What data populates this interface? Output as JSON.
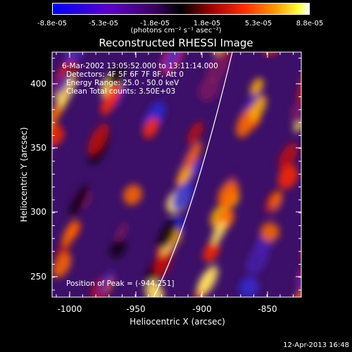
{
  "colorbar": {
    "ticks": [
      "-8.8e-05",
      "-5.3e-05",
      "-1.8e-05",
      "1.8e-05",
      "5.3e-05",
      "8.8e-05"
    ],
    "units": "(photons cm⁻² s⁻¹ asec⁻²)"
  },
  "title": "Reconstructed RHESSI Image",
  "info": {
    "time_range": "6-Mar-2002 13:05:52.000 to 13:11:14.000",
    "detectors": "Detectors: 4F 5F 6F 7F 8F, Att 0",
    "energy": "Energy Range: 25.0 - 50.0 keV",
    "clean": "Clean     Total counts: 3.50E+03",
    "peak": "Position of Peak = (-944,251]"
  },
  "axes": {
    "xlabel": "Heliocentric X (arcsec)",
    "ylabel": "Heliocentric Y (arcsec)",
    "xticks": [
      "-1000",
      "-950",
      "-900",
      "-850"
    ],
    "yticks": [
      "250",
      "300",
      "350",
      "400"
    ]
  },
  "timestamp": "12-Apr-2013 16:48",
  "colors": {
    "background": "#000000",
    "foreground": "#ffffff"
  }
}
